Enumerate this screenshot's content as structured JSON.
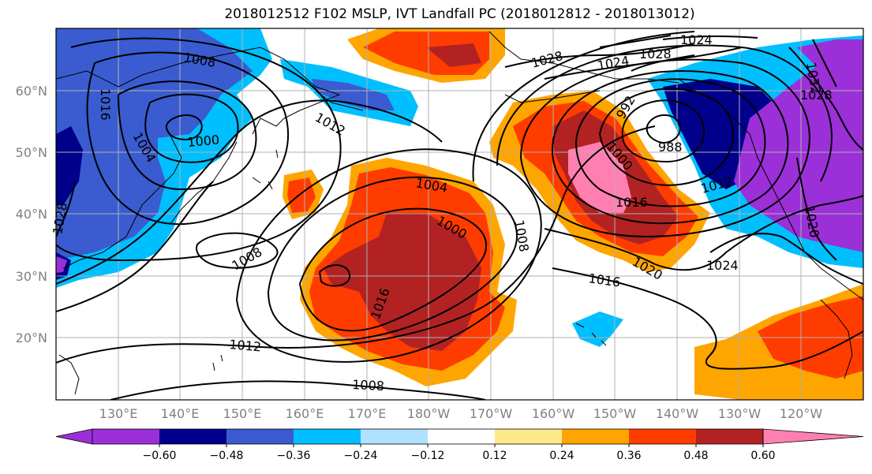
{
  "title": "2018012512 F102 MSLP, IVT Landfall PC (2018012812 - 2018013012)",
  "lat_labels": [
    "60°N",
    "50°N",
    "40°N",
    "30°N",
    "20°N"
  ],
  "lon_labels": [
    "130°E",
    "140°E",
    "150°E",
    "160°E",
    "170°E",
    "180°W",
    "170°W",
    "160°W",
    "150°W",
    "140°W",
    "130°W",
    "120°W"
  ],
  "isobars": {
    "label_1008_nw": "1008",
    "label_1016_w": "1016",
    "label_1004_w": "1004",
    "label_1000_w": "1000",
    "label_1012_nw": "1012",
    "label_1028_w": "1028",
    "label_1004_c": "1004",
    "label_1000_c": "1000",
    "label_1008_c": "1008",
    "label_1016_c": "1016",
    "label_1008_sw": "1008",
    "label_1012_s": "1012",
    "label_1008_s": "1008",
    "label_1028_n": "1028",
    "label_1024_n": "1024",
    "label_1024_ne": "1024",
    "label_1028_ne": "1028",
    "label_992": "992",
    "label_1000_e": "1000",
    "label_988": "988",
    "label_1012_e": "1012",
    "label_1016_e": "1016",
    "label_1020_e": "1020",
    "label_1016_se": "1016",
    "label_1024_e": "1024",
    "label_1032_ne": "1032",
    "label_1028_ee": "1028",
    "label_1020_ee": "1020"
  },
  "colorbar": {
    "ticks": [
      "−0.60",
      "−0.48",
      "−0.36",
      "−0.24",
      "−0.12",
      "0.12",
      "0.24",
      "0.36",
      "0.48",
      "0.60"
    ],
    "colors": [
      "#9b30d8",
      "#00008b",
      "#3a5cd0",
      "#00bfff",
      "#aee2ff",
      "#ffffff",
      "#ffe88a",
      "#ffa500",
      "#ff3c00",
      "#b22222",
      "#ff80b0"
    ]
  }
}
